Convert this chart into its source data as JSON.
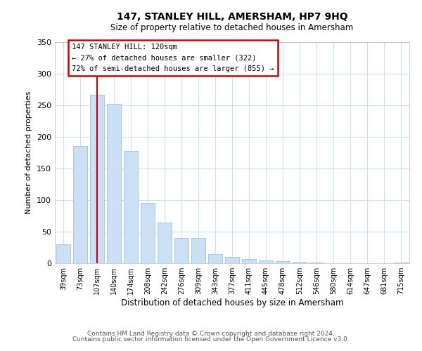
{
  "title": "147, STANLEY HILL, AMERSHAM, HP7 9HQ",
  "subtitle": "Size of property relative to detached houses in Amersham",
  "xlabel": "Distribution of detached houses by size in Amersham",
  "ylabel": "Number of detached properties",
  "bar_labels": [
    "39sqm",
    "73sqm",
    "107sqm",
    "140sqm",
    "174sqm",
    "208sqm",
    "242sqm",
    "276sqm",
    "309sqm",
    "343sqm",
    "377sqm",
    "411sqm",
    "445sqm",
    "478sqm",
    "512sqm",
    "546sqm",
    "580sqm",
    "614sqm",
    "647sqm",
    "681sqm",
    "715sqm"
  ],
  "bar_values": [
    30,
    186,
    267,
    252,
    178,
    96,
    65,
    40,
    40,
    14,
    10,
    7,
    4,
    3,
    2,
    1,
    0,
    0,
    0,
    0,
    1
  ],
  "bar_color": "#cce0f5",
  "bar_edge_color": "#99c2e8",
  "vline_x": 2,
  "vline_color": "#cc0000",
  "ylim": [
    0,
    350
  ],
  "yticks": [
    0,
    50,
    100,
    150,
    200,
    250,
    300,
    350
  ],
  "annotation_title": "147 STANLEY HILL: 120sqm",
  "annotation_line1": "← 27% of detached houses are smaller (322)",
  "annotation_line2": "72% of semi-detached houses are larger (855) →",
  "annotation_box_color": "#ffffff",
  "annotation_box_edge": "#cc0000",
  "footer1": "Contains HM Land Registry data © Crown copyright and database right 2024.",
  "footer2": "Contains public sector information licensed under the Open Government Licence v3.0.",
  "background_color": "#ffffff",
  "grid_color": "#cce0f5"
}
